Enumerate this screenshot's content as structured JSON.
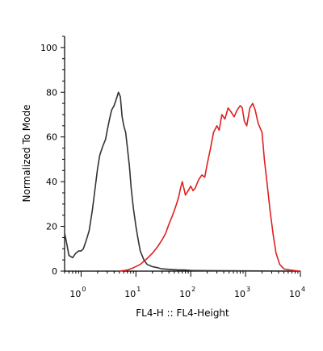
{
  "chart_data": {
    "type": "histogram",
    "xlabel": "FL4-H :: FL4-Height",
    "ylabel": "Normalized To Mode",
    "x_scale": "log",
    "xlim": [
      0.5,
      10000
    ],
    "ylim": [
      0,
      105
    ],
    "yticks": [
      0,
      20,
      40,
      60,
      80,
      100
    ],
    "xticks": [
      {
        "value": 1,
        "base": "10",
        "exp": "0"
      },
      {
        "value": 10,
        "base": "10",
        "exp": "1"
      },
      {
        "value": 100,
        "base": "10",
        "exp": "2"
      },
      {
        "value": 1000,
        "base": "10",
        "exp": "3"
      },
      {
        "value": 10000,
        "base": "10",
        "exp": "4"
      }
    ],
    "series": [
      {
        "color": "#333333",
        "points": [
          [
            0.5,
            17
          ],
          [
            0.55,
            12
          ],
          [
            0.6,
            7
          ],
          [
            0.7,
            6
          ],
          [
            0.8,
            8
          ],
          [
            0.9,
            9
          ],
          [
            1.0,
            9
          ],
          [
            1.1,
            10
          ],
          [
            1.25,
            14
          ],
          [
            1.4,
            18
          ],
          [
            1.6,
            27
          ],
          [
            1.8,
            37
          ],
          [
            2.0,
            46
          ],
          [
            2.2,
            52
          ],
          [
            2.5,
            56
          ],
          [
            2.8,
            59
          ],
          [
            3.0,
            63
          ],
          [
            3.3,
            68
          ],
          [
            3.6,
            72
          ],
          [
            4.0,
            74
          ],
          [
            4.4,
            77
          ],
          [
            4.8,
            80
          ],
          [
            5.2,
            78
          ],
          [
            5.6,
            69
          ],
          [
            6.0,
            65
          ],
          [
            6.5,
            62
          ],
          [
            7.0,
            55
          ],
          [
            7.6,
            47
          ],
          [
            8.2,
            37
          ],
          [
            9.0,
            28
          ],
          [
            10,
            20
          ],
          [
            11,
            14
          ],
          [
            12,
            9
          ],
          [
            14,
            5
          ],
          [
            16,
            3
          ],
          [
            20,
            2
          ],
          [
            25,
            1.5
          ],
          [
            30,
            1
          ],
          [
            40,
            0.8
          ],
          [
            60,
            0.5
          ],
          [
            80,
            0.5
          ],
          [
            100,
            0.3
          ],
          [
            200,
            0.2
          ],
          [
            1000,
            0.1
          ],
          [
            10000,
            0
          ]
        ]
      },
      {
        "color": "#e02020",
        "points": [
          [
            5,
            0
          ],
          [
            7,
            0.5
          ],
          [
            9,
            1.5
          ],
          [
            12,
            3
          ],
          [
            15,
            5
          ],
          [
            20,
            8
          ],
          [
            25,
            11
          ],
          [
            30,
            14
          ],
          [
            35,
            17
          ],
          [
            40,
            21
          ],
          [
            45,
            24
          ],
          [
            50,
            27
          ],
          [
            55,
            30
          ],
          [
            60,
            33
          ],
          [
            65,
            37
          ],
          [
            70,
            40
          ],
          [
            75,
            37
          ],
          [
            80,
            34
          ],
          [
            90,
            36
          ],
          [
            100,
            38
          ],
          [
            110,
            36
          ],
          [
            120,
            37
          ],
          [
            140,
            41
          ],
          [
            160,
            43
          ],
          [
            180,
            42
          ],
          [
            200,
            48
          ],
          [
            230,
            55
          ],
          [
            260,
            62
          ],
          [
            300,
            65
          ],
          [
            330,
            63
          ],
          [
            370,
            70
          ],
          [
            420,
            68
          ],
          [
            480,
            73
          ],
          [
            550,
            71
          ],
          [
            620,
            69
          ],
          [
            700,
            72
          ],
          [
            800,
            74
          ],
          [
            870,
            73
          ],
          [
            950,
            67
          ],
          [
            1050,
            65
          ],
          [
            1200,
            73
          ],
          [
            1350,
            75
          ],
          [
            1500,
            72
          ],
          [
            1700,
            66
          ],
          [
            2000,
            62
          ],
          [
            2200,
            50
          ],
          [
            2500,
            38
          ],
          [
            2800,
            27
          ],
          [
            3200,
            16
          ],
          [
            3600,
            8
          ],
          [
            4200,
            3
          ],
          [
            5000,
            1
          ],
          [
            6500,
            0.5
          ],
          [
            10000,
            0
          ]
        ]
      }
    ]
  }
}
